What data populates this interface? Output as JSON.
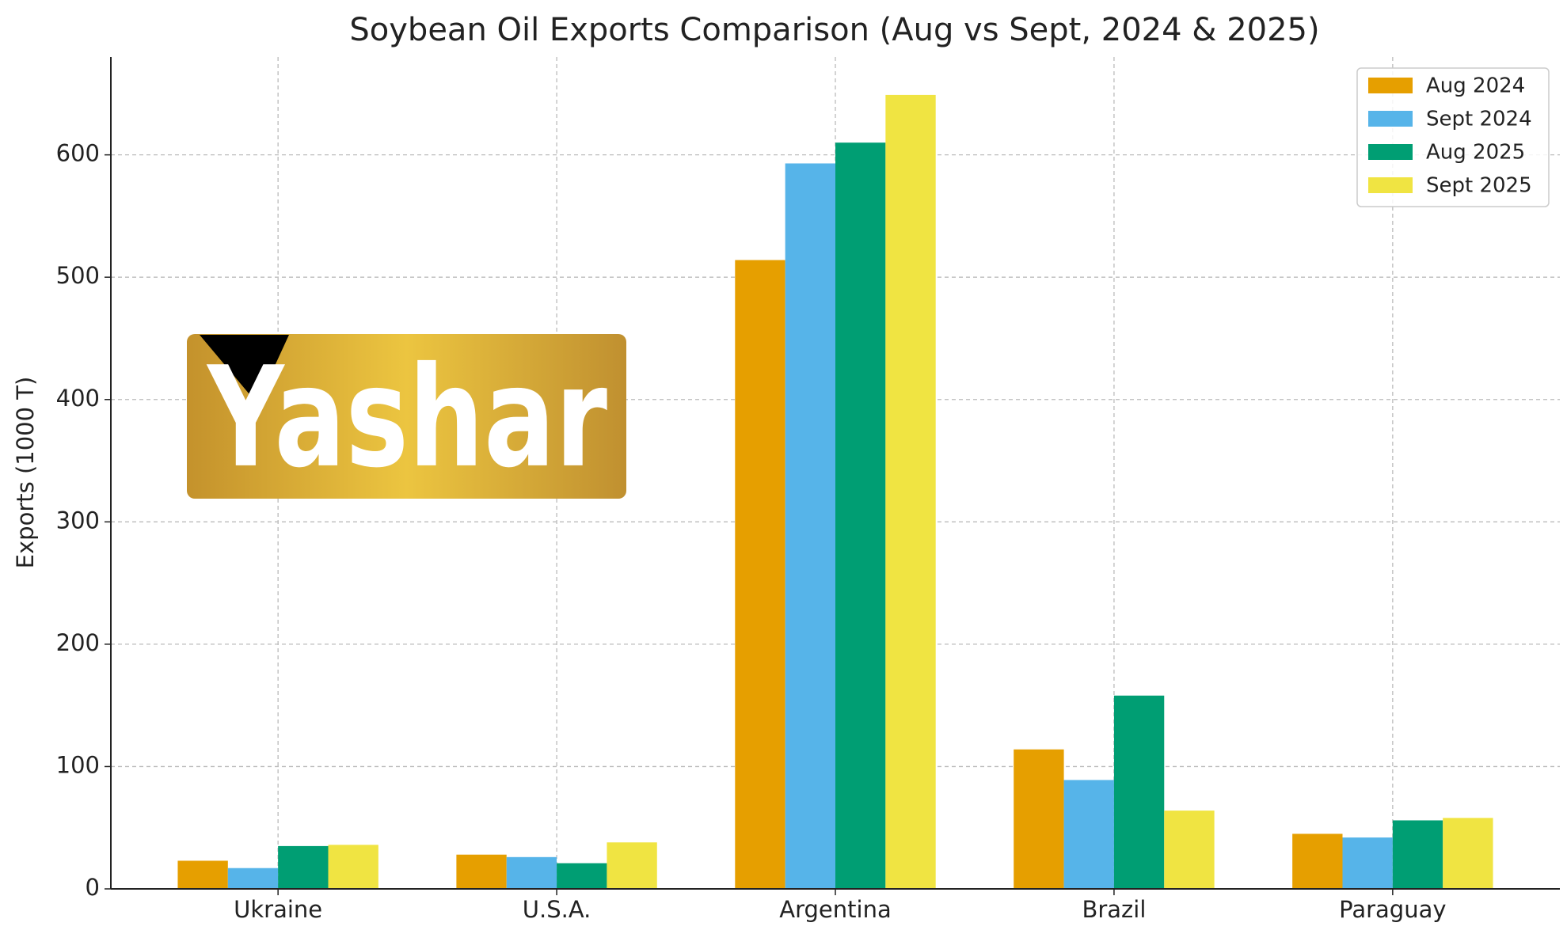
{
  "chart_data": {
    "type": "bar",
    "title": "Soybean Oil Exports Comparison (Aug vs Sept, 2024 & 2025)",
    "y_label": "Exports (1000 T)",
    "watermark": "Yashar",
    "categories": [
      "Ukraine",
      "U.S.A.",
      "Argentina",
      "Brazil",
      "Paraguay"
    ],
    "series": [
      {
        "name": "Aug 2024",
        "color": "#E69F00",
        "values": [
          23,
          28,
          514,
          114,
          45
        ]
      },
      {
        "name": "Sept 2024",
        "color": "#56B4E9",
        "values": [
          17,
          26,
          593,
          89,
          42
        ]
      },
      {
        "name": "Aug 2025",
        "color": "#009E73",
        "values": [
          35,
          21,
          610,
          158,
          56
        ]
      },
      {
        "name": "Sept 2025",
        "color": "#F0E442",
        "values": [
          36,
          38,
          649,
          64,
          58
        ]
      }
    ],
    "ylim": [
      0,
      680
    ],
    "yticks": [
      0,
      100,
      200,
      300,
      400,
      500,
      600
    ],
    "grid": true,
    "legend": "upper right"
  }
}
